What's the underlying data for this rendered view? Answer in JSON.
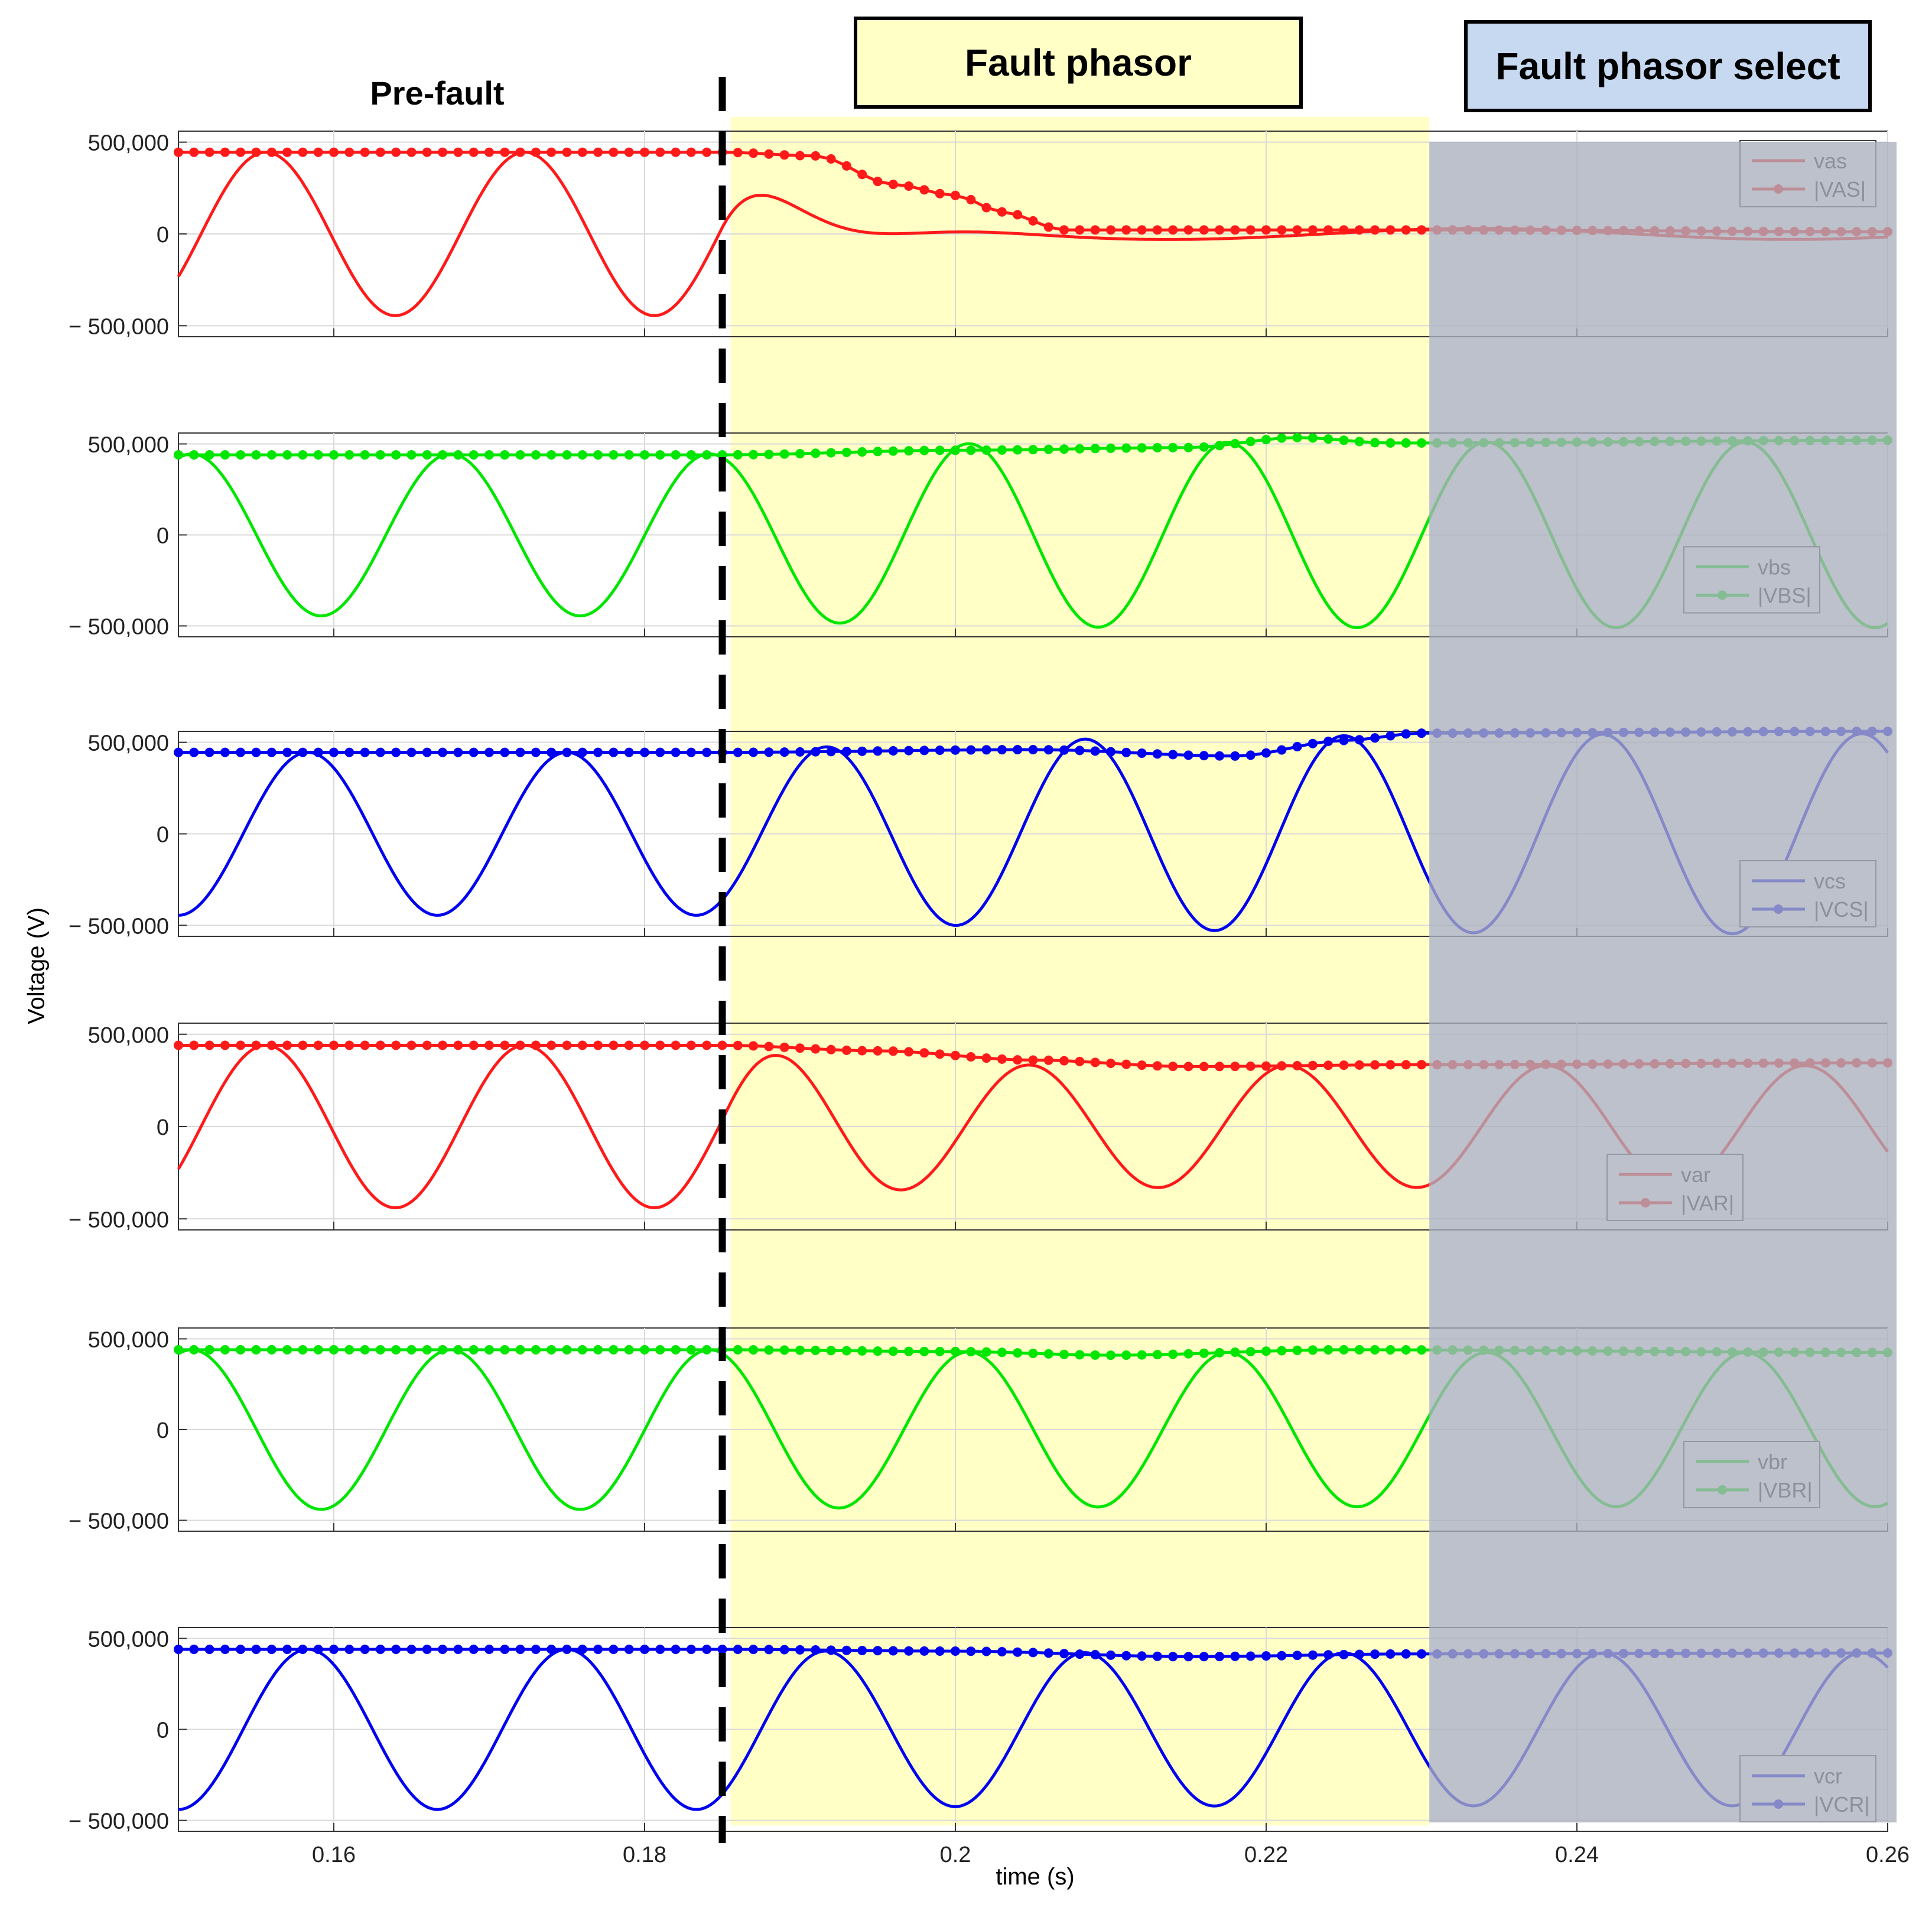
{
  "banners": {
    "prefault": "Pre-fault",
    "fault_phasor": "Fault phasor",
    "fault_phasor_select": "Fault phasor select"
  },
  "colors": {
    "red": "#ff1a1a",
    "green": "#00e600",
    "blue": "#0000f0",
    "fault_band": "#ffffc6",
    "select_band": "#aab0bc"
  },
  "chart_data": {
    "type": "line",
    "xlabel": "time (s)",
    "ylabel": "Voltage (V)",
    "xlim": [
      0.15,
      0.26
    ],
    "xticks": [
      0.16,
      0.18,
      0.2,
      0.22,
      0.24,
      0.26
    ],
    "xtick_labels": [
      "0.16",
      "0.18",
      "0.2",
      "0.22",
      "0.24",
      "0.26"
    ],
    "fault_time": 0.185,
    "regions": [
      {
        "name": "Fault phasor",
        "x0": 0.185,
        "x1": 0.2305
      },
      {
        "name": "Fault phasor select",
        "x0": 0.2305,
        "x1": 0.26
      }
    ],
    "panels": [
      {
        "ylim": [
          -560000,
          560000
        ],
        "yticks": [
          500000,
          0,
          -500000
        ],
        "ytick_labels": [
          "500,000",
          "0",
          "− 500,000"
        ],
        "color": "#ff1a1a",
        "legend": [
          "vas",
          "|VAS|"
        ],
        "legend_pos": "top-right",
        "pre_amp": 445000,
        "post_amp": 18000,
        "pre_phase": -0.55,
        "post_phase": 1.2,
        "tau": 0.004,
        "decaying": true,
        "mag_points": [
          [
            0.15,
            445000
          ],
          [
            0.185,
            445000
          ],
          [
            0.191,
            425000
          ],
          [
            0.196,
            270000
          ],
          [
            0.2,
            210000
          ],
          [
            0.203,
            120000
          ],
          [
            0.207,
            22000
          ],
          [
            0.23,
            22000
          ],
          [
            0.26,
            12000
          ]
        ]
      },
      {
        "ylim": [
          -560000,
          560000
        ],
        "yticks": [
          500000,
          0,
          -500000
        ],
        "ytick_labels": [
          "500,000",
          "0",
          "− 500,000"
        ],
        "color": "#00e600",
        "legend": [
          "vbs",
          "|VBS|"
        ],
        "legend_pos": "right-middle",
        "pre_amp": 445000,
        "post_amp": 510000,
        "pre_phase": 1.25,
        "post_phase": 1.25,
        "tau": 0.008,
        "decaying": false,
        "mag_points": [
          [
            0.15,
            440000
          ],
          [
            0.185,
            440000
          ],
          [
            0.2,
            465000
          ],
          [
            0.215,
            480000
          ],
          [
            0.222,
            535000
          ],
          [
            0.228,
            505000
          ],
          [
            0.26,
            520000
          ]
        ]
      },
      {
        "ylim": [
          -560000,
          560000
        ],
        "yticks": [
          500000,
          0,
          -500000
        ],
        "ytick_labels": [
          "500,000",
          "0",
          "− 500,000"
        ],
        "color": "#0000f0",
        "legend": [
          "vcs",
          "|VCS|"
        ],
        "legend_pos": "bottom-right",
        "pre_amp": 445000,
        "post_amp": 550000,
        "pre_phase": -1.57,
        "post_phase": -1.57,
        "tau": 0.02,
        "decaying": false,
        "mag_points": [
          [
            0.15,
            445000
          ],
          [
            0.185,
            445000
          ],
          [
            0.205,
            460000
          ],
          [
            0.218,
            425000
          ],
          [
            0.225,
            510000
          ],
          [
            0.23,
            550000
          ],
          [
            0.26,
            560000
          ]
        ]
      },
      {
        "ylim": [
          -560000,
          560000
        ],
        "yticks": [
          500000,
          0,
          -500000
        ],
        "ytick_labels": [
          "500,000",
          "0",
          "− 500,000"
        ],
        "color": "#ff1a1a",
        "legend": [
          "var",
          "|VAR|"
        ],
        "legend_pos": "bottom-middle",
        "pre_amp": 440000,
        "post_amp": 330000,
        "pre_phase": -0.55,
        "post_phase": -0.2,
        "tau": 0.006,
        "decaying": false,
        "mag_points": [
          [
            0.15,
            440000
          ],
          [
            0.185,
            440000
          ],
          [
            0.195,
            410000
          ],
          [
            0.205,
            360000
          ],
          [
            0.215,
            325000
          ],
          [
            0.23,
            335000
          ],
          [
            0.26,
            345000
          ]
        ]
      },
      {
        "ylim": [
          -560000,
          560000
        ],
        "yticks": [
          500000,
          0,
          -500000
        ],
        "ytick_labels": [
          "500,000",
          "0",
          "− 500,000"
        ],
        "color": "#00e600",
        "legend": [
          "vbr",
          "|VBR|"
        ],
        "legend_pos": "right-middle",
        "pre_amp": 440000,
        "post_amp": 425000,
        "pre_phase": 1.25,
        "post_phase": 1.25,
        "tau": 0.01,
        "decaying": false,
        "mag_points": [
          [
            0.15,
            440000
          ],
          [
            0.185,
            440000
          ],
          [
            0.2,
            430000
          ],
          [
            0.21,
            410000
          ],
          [
            0.225,
            440000
          ],
          [
            0.26,
            425000
          ]
        ]
      },
      {
        "ylim": [
          -560000,
          560000
        ],
        "yticks": [
          500000,
          0,
          -500000
        ],
        "ytick_labels": [
          "500,000",
          "0",
          "− 500,000"
        ],
        "color": "#0000f0",
        "legend": [
          "vcr",
          "|VCR|"
        ],
        "legend_pos": "bottom-right",
        "pre_amp": 440000,
        "post_amp": 420000,
        "pre_phase": -1.57,
        "post_phase": -1.57,
        "tau": 0.01,
        "decaying": false,
        "mag_points": [
          [
            0.15,
            440000
          ],
          [
            0.185,
            440000
          ],
          [
            0.2,
            430000
          ],
          [
            0.215,
            400000
          ],
          [
            0.23,
            415000
          ],
          [
            0.26,
            420000
          ]
        ]
      }
    ]
  }
}
